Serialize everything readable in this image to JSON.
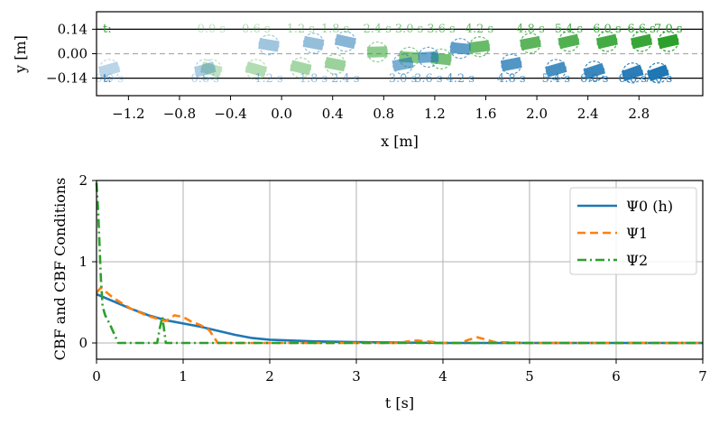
{
  "chart_data": [
    {
      "type": "scatter",
      "xlabel": "x [m]",
      "ylabel": "y [m]",
      "xlim": [
        -1.45,
        3.3
      ],
      "ylim": [
        -0.24,
        0.24
      ],
      "xticks": [
        "−1.2",
        "−0.8",
        "−0.4",
        "0.0",
        "0.4",
        "0.8",
        "1.2",
        "1.6",
        "2.0",
        "2.4",
        "2.8"
      ],
      "xtick_values": [
        -1.2,
        -0.8,
        -0.4,
        0.0,
        0.4,
        0.8,
        1.2,
        1.6,
        2.0,
        2.4,
        2.8
      ],
      "yticks": [
        "0.14",
        "0.00",
        "−0.14"
      ],
      "ytick_values": [
        0.14,
        0.0,
        -0.14
      ],
      "top_row_label": "t:",
      "bottom_row_label": "t:",
      "series": [
        {
          "color": "#2ca02c",
          "points": [
            {
              "x": -0.55,
              "y": -0.09,
              "label": "0.0 s"
            },
            {
              "x": -0.2,
              "y": -0.09,
              "label": "0.6 s"
            },
            {
              "x": 0.15,
              "y": -0.08,
              "label": "1.2 s"
            },
            {
              "x": 0.42,
              "y": -0.06,
              "label": "1.8 s"
            },
            {
              "x": 0.75,
              "y": 0.01,
              "label": "2.4 s"
            },
            {
              "x": 1.0,
              "y": -0.02,
              "label": "3.0 s"
            },
            {
              "x": 1.25,
              "y": -0.03,
              "label": "3.6 s"
            },
            {
              "x": 1.55,
              "y": 0.04,
              "label": "4.2 s"
            },
            {
              "x": 1.95,
              "y": 0.06,
              "label": "4.8 s"
            },
            {
              "x": 2.25,
              "y": 0.07,
              "label": "5.4 s"
            },
            {
              "x": 2.55,
              "y": 0.07,
              "label": "6.0 s"
            },
            {
              "x": 2.82,
              "y": 0.07,
              "label": "6.6 s"
            },
            {
              "x": 3.03,
              "y": 0.07,
              "label": "7.0 s"
            }
          ]
        },
        {
          "color": "#1f77b4",
          "points": [
            {
              "x": -1.35,
              "y": -0.09,
              "label": "0.0 s"
            },
            {
              "x": -0.6,
              "y": -0.09,
              "label": "0.6 s"
            },
            {
              "x": -0.1,
              "y": 0.05,
              "label": "1.2 s"
            },
            {
              "x": 0.25,
              "y": 0.06,
              "label": "1.8 s"
            },
            {
              "x": 0.5,
              "y": 0.07,
              "label": "2.4 s"
            },
            {
              "x": 0.95,
              "y": -0.06,
              "label": "3.0 s"
            },
            {
              "x": 1.15,
              "y": -0.02,
              "label": "3.6 s"
            },
            {
              "x": 1.4,
              "y": 0.03,
              "label": "4.2 s"
            },
            {
              "x": 1.8,
              "y": -0.06,
              "label": "4.8 s"
            },
            {
              "x": 2.15,
              "y": -0.09,
              "label": "5.4 s"
            },
            {
              "x": 2.45,
              "y": -0.1,
              "label": "6.0 s"
            },
            {
              "x": 2.75,
              "y": -0.11,
              "label": "6.6 s"
            },
            {
              "x": 2.95,
              "y": -0.11,
              "label": "7.0 s"
            }
          ]
        }
      ]
    },
    {
      "type": "line",
      "xlabel": "t [s]",
      "ylabel": "CBF and CBF Conditions",
      "xlim": [
        0,
        7
      ],
      "ylim": [
        -0.2,
        2.0
      ],
      "xticks": [
        "0",
        "1",
        "2",
        "3",
        "4",
        "5",
        "6",
        "7"
      ],
      "yticks": [
        "0",
        "1",
        "2"
      ],
      "grid": true,
      "legend_position": "top-right",
      "series": [
        {
          "name": "Ψ0 (h)",
          "color": "#1f77b4",
          "dash": "solid",
          "x": [
            0,
            0.2,
            0.4,
            0.6,
            0.8,
            1.0,
            1.2,
            1.4,
            1.6,
            1.8,
            2.0,
            2.5,
            3.0,
            4.0,
            5.0,
            6.0,
            7.0
          ],
          "y": [
            0.6,
            0.51,
            0.42,
            0.34,
            0.28,
            0.24,
            0.2,
            0.15,
            0.1,
            0.06,
            0.04,
            0.02,
            0.01,
            0.0,
            0.0,
            0.0,
            0.0
          ]
        },
        {
          "name": "Ψ1",
          "color": "#ff7f0e",
          "dash": "dashed",
          "x": [
            0,
            0.05,
            0.2,
            0.4,
            0.6,
            0.8,
            0.9,
            1.0,
            1.1,
            1.2,
            1.3,
            1.4,
            1.5,
            2.0,
            3.0,
            3.5,
            3.6,
            3.7,
            3.8,
            4.0,
            4.2,
            4.3,
            4.4,
            4.5,
            4.6,
            5.0,
            6.0,
            7.0
          ],
          "y": [
            0.62,
            0.68,
            0.55,
            0.42,
            0.33,
            0.27,
            0.34,
            0.32,
            0.26,
            0.22,
            0.16,
            0.0,
            0.0,
            0.0,
            0.0,
            0.0,
            0.02,
            0.03,
            0.02,
            0.0,
            0.0,
            0.04,
            0.07,
            0.04,
            0.01,
            0.0,
            0.0,
            0.0
          ]
        },
        {
          "name": "Ψ2",
          "color": "#2ca02c",
          "dash": "dashdot",
          "x": [
            0,
            0.02,
            0.05,
            0.07,
            0.1,
            0.15,
            0.2,
            0.25,
            0.3,
            0.7,
            0.73,
            0.76,
            0.8,
            0.9,
            1.0,
            2.0,
            3.0,
            4.0,
            5.0,
            6.0,
            7.0
          ],
          "y": [
            1.97,
            1.6,
            0.8,
            0.45,
            0.34,
            0.24,
            0.12,
            0.0,
            0.0,
            0.0,
            0.18,
            0.32,
            0.0,
            0.0,
            0.0,
            0.0,
            0.0,
            0.0,
            0.0,
            0.0,
            0.0
          ]
        }
      ]
    }
  ]
}
